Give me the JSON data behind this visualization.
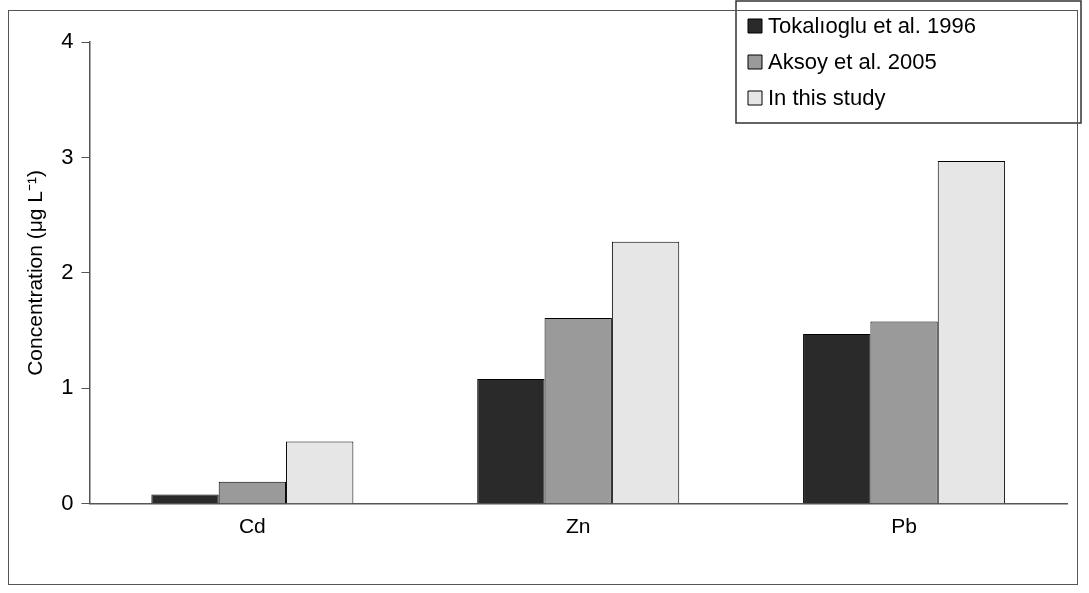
{
  "chart_data": {
    "type": "bar",
    "ylabel": "Concentration (μg L⁻¹)",
    "categories": [
      "Cd",
      "Zn",
      "Pb"
    ],
    "series": [
      {
        "name": "Tokalıoglu et al. 1996",
        "color": "#2a2a2a",
        "values": [
          0.08,
          1.08,
          1.47
        ]
      },
      {
        "name": "Aksoy et al. 2005",
        "color": "#9a9a9a",
        "values": [
          0.19,
          1.61,
          1.58
        ]
      },
      {
        "name": "In this study",
        "color": "#e6e6e6",
        "values": [
          0.54,
          2.27,
          2.97
        ]
      }
    ],
    "ylim": [
      0,
      4
    ],
    "yticks": [
      0,
      1,
      2,
      3,
      4
    ],
    "grid": false,
    "legend": "top right"
  }
}
